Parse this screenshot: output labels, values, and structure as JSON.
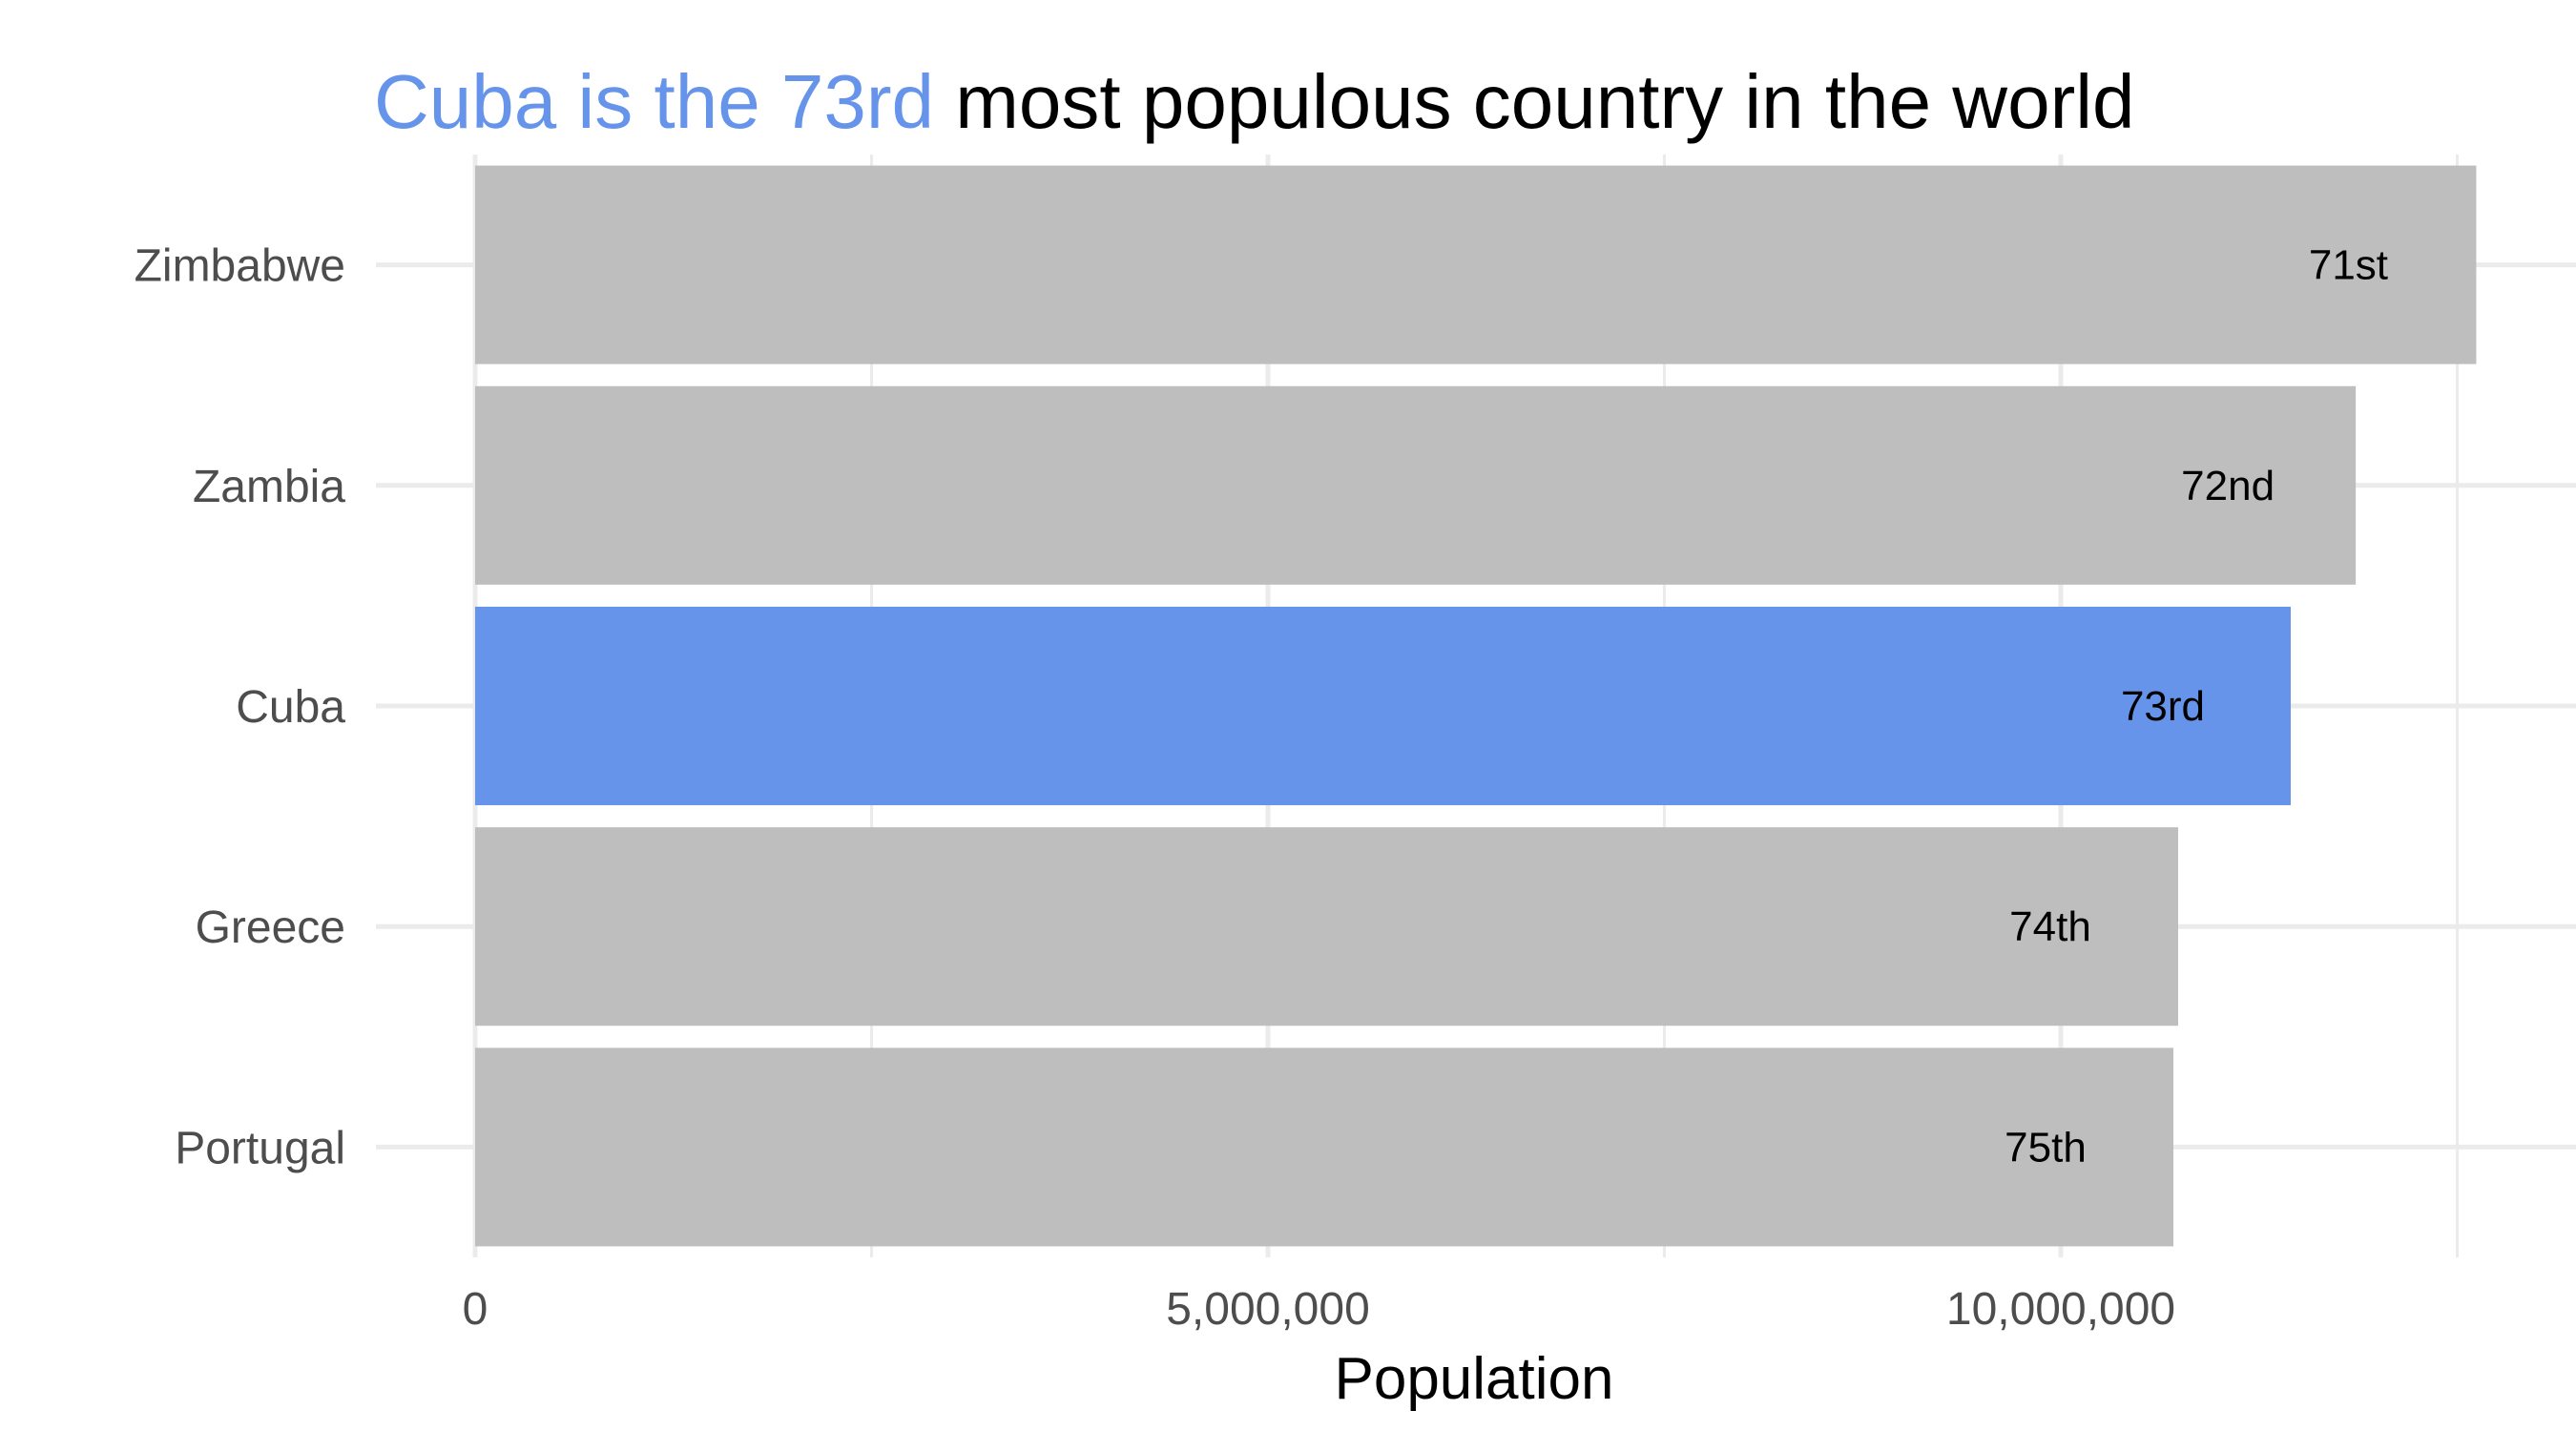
{
  "title": {
    "highlight": "Cuba is the 73rd",
    "rest": " most populous country in the world"
  },
  "colors": {
    "highlight": "#6694eb",
    "bar": "#bebebe",
    "grid": "#ebebeb",
    "tick_text": "#4d4d4d",
    "label_text": "#000000"
  },
  "chart_data": {
    "type": "bar",
    "orientation": "horizontal",
    "categories": [
      "Zimbabwe",
      "Zambia",
      "Cuba",
      "Greece",
      "Portugal"
    ],
    "values": [
      12620000,
      11860000,
      11450000,
      10740000,
      10710000
    ],
    "ranks": [
      "71st",
      "72nd",
      "73rd",
      "74th",
      "75th"
    ],
    "highlight": "Cuba",
    "xlabel": "Population",
    "ylabel": "",
    "xticks": [
      0,
      5000000,
      10000000
    ],
    "xtick_labels": [
      "0",
      "5,000,000",
      "10,000,000"
    ],
    "xlim": [
      0,
      13000000
    ],
    "grid": true,
    "legend": false
  }
}
